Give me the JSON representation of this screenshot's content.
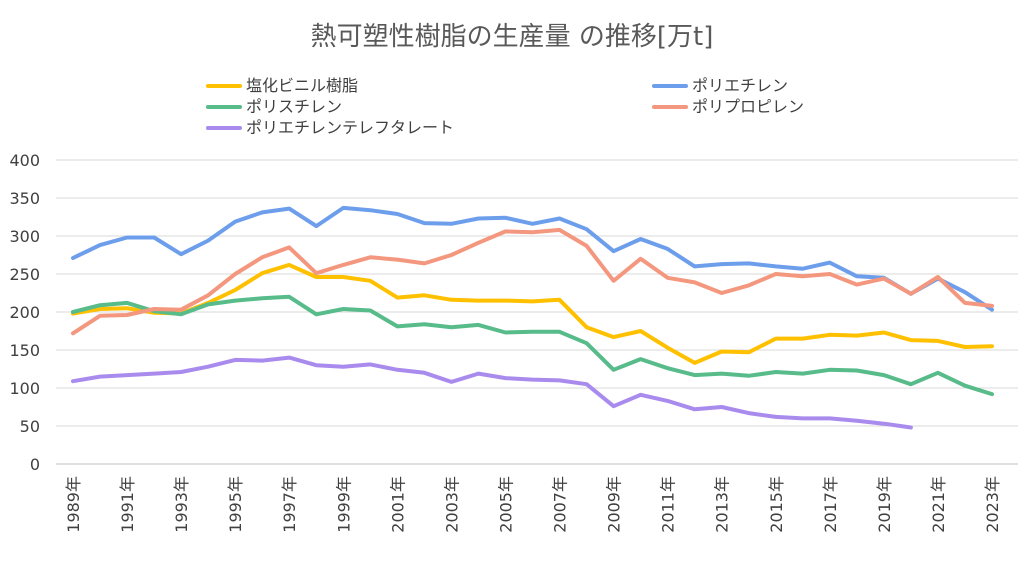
{
  "chart_data": {
    "type": "line",
    "title": "熱可塑性樹脂の生産量 の推移[万t]",
    "ylim": [
      0,
      400
    ],
    "yticks": [
      0,
      50,
      100,
      150,
      200,
      250,
      300,
      350,
      400
    ],
    "grid": true,
    "legend_position": "top",
    "x": [
      1989,
      1990,
      1991,
      1992,
      1993,
      1994,
      1995,
      1996,
      1997,
      1998,
      1999,
      2000,
      2001,
      2002,
      2003,
      2004,
      2005,
      2006,
      2007,
      2008,
      2009,
      2010,
      2011,
      2012,
      2013,
      2014,
      2015,
      2016,
      2017,
      2018,
      2019,
      2020,
      2021,
      2022,
      2023
    ],
    "x_tick_labels": [
      "1989年",
      "1991年",
      "1993年",
      "1995年",
      "1997年",
      "1999年",
      "2001年",
      "2003年",
      "2005年",
      "2007年",
      "2009年",
      "2011年",
      "2013年",
      "2015年",
      "2017年",
      "2019年",
      "2021年",
      "2023年"
    ],
    "series": [
      {
        "name": "塩化ビニル樹脂",
        "color": "#FFC000",
        "values": [
          198,
          204,
          205,
          199,
          198,
          212,
          229,
          251,
          262,
          246,
          246,
          241,
          219,
          222,
          216,
          215,
          215,
          214,
          216,
          180,
          167,
          175,
          153,
          133,
          148,
          147,
          165,
          165,
          170,
          169,
          173,
          163,
          162,
          154,
          155
        ]
      },
      {
        "name": "ポリエチレン",
        "color": "#6D9EEB",
        "values": [
          271,
          288,
          298,
          298,
          276,
          294,
          319,
          331,
          336,
          313,
          337,
          334,
          329,
          317,
          316,
          323,
          324,
          316,
          323,
          309,
          280,
          296,
          283,
          260,
          263,
          264,
          260,
          257,
          265,
          247,
          245,
          224,
          244,
          226,
          203
        ]
      },
      {
        "name": "ポリスチレン",
        "color": "#57BB8A",
        "values": [
          200,
          209,
          212,
          201,
          197,
          210,
          215,
          218,
          220,
          197,
          204,
          202,
          181,
          184,
          180,
          183,
          173,
          174,
          174,
          159,
          124,
          138,
          126,
          117,
          119,
          116,
          121,
          119,
          124,
          123,
          117,
          105,
          120,
          103,
          92
        ]
      },
      {
        "name": "ポリプロピレン",
        "color": "#F4977F",
        "values": [
          172,
          195,
          196,
          204,
          203,
          222,
          250,
          272,
          285,
          251,
          262,
          272,
          269,
          264,
          275,
          291,
          306,
          305,
          308,
          287,
          241,
          270,
          245,
          239,
          225,
          235,
          250,
          247,
          250,
          236,
          244,
          224,
          246,
          212,
          208
        ]
      },
      {
        "name": "ポリエチレンテレフタレート",
        "color": "#A98BEE",
        "values": [
          109,
          115,
          117,
          119,
          121,
          128,
          137,
          136,
          140,
          130,
          128,
          131,
          124,
          120,
          108,
          119,
          113,
          111,
          110,
          105,
          76,
          91,
          83,
          72,
          75,
          67,
          62,
          60,
          60,
          57,
          53,
          48,
          null,
          null,
          null
        ]
      }
    ]
  }
}
